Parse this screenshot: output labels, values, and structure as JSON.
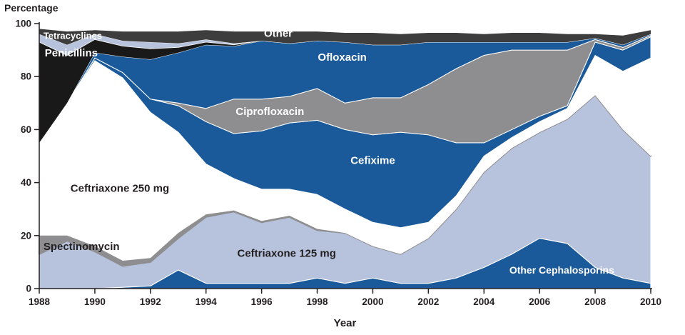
{
  "chart_data": {
    "type": "area",
    "stacked": true,
    "title": "",
    "ylabel": "Percentage",
    "xlabel": "Year",
    "ylim": [
      0,
      100
    ],
    "grid": false,
    "legend": "labels-inside-areas",
    "y_ticks": [
      0,
      20,
      40,
      60,
      80,
      100
    ],
    "x_ticks": [
      1988,
      1990,
      1992,
      1994,
      1996,
      1998,
      2000,
      2002,
      2004,
      2006,
      2008,
      2010
    ],
    "x": [
      1988,
      1989,
      1990,
      1991,
      1992,
      1993,
      1994,
      1995,
      1996,
      1997,
      1998,
      1999,
      2000,
      2001,
      2002,
      2003,
      2004,
      2005,
      2006,
      2007,
      2008,
      2009,
      2010
    ],
    "series": [
      {
        "id": "other-cephalosporins",
        "name": "Other Cephalosporins",
        "color": "#1a5a9a",
        "stroke": "#ffffff",
        "stroke_width": 1.2,
        "values": [
          0,
          0,
          0,
          0.5,
          1,
          7,
          2,
          2,
          2,
          2,
          4,
          2,
          4,
          2,
          2,
          4,
          8,
          13,
          19,
          17,
          8,
          4,
          2
        ]
      },
      {
        "id": "ceftriaxone-125",
        "name": "Ceftriaxone 125 mg",
        "color": "#b7c3dd",
        "stroke": "#ffffff",
        "stroke_width": 1,
        "values": [
          13,
          18,
          14,
          8,
          9,
          12,
          25,
          27,
          23,
          25,
          18,
          19,
          12,
          11,
          17,
          26,
          36,
          40,
          40,
          47,
          65,
          56,
          48
        ]
      },
      {
        "id": "spectinomycin",
        "name": "Spectinomycin",
        "color": "#8e8e90",
        "stroke": "#8e8e90",
        "stroke_width": 2,
        "values": [
          7,
          2,
          2,
          2,
          1.5,
          2,
          1,
          0.5,
          0.5,
          0.5,
          0.5,
          0,
          0,
          0,
          0,
          0,
          0,
          0,
          0,
          0,
          0,
          0,
          0
        ]
      },
      {
        "id": "ceftriaxone-250",
        "name": "Ceftriaxone 250 mg",
        "color": "#ffffff",
        "stroke": "none",
        "stroke_width": 0,
        "values": [
          35,
          50,
          70,
          69,
          55,
          38,
          19,
          12,
          12,
          10,
          13,
          9,
          9,
          10,
          6,
          5,
          6,
          4,
          4,
          4,
          15,
          22,
          37
        ]
      },
      {
        "id": "cefixime",
        "name": "Cefixime",
        "color": "#1a5a9a",
        "stroke": "#ffffff",
        "stroke_width": 1,
        "values": [
          0,
          0,
          1,
          2,
          5,
          10,
          16,
          17,
          22,
          25,
          28,
          30,
          33,
          36,
          33,
          20,
          5,
          3,
          2,
          1,
          5,
          8,
          8
        ]
      },
      {
        "id": "ciprofloxacin",
        "name": "Ciprofloxacin",
        "color": "#8e8e90",
        "stroke": "#ffffff",
        "stroke_width": 1,
        "values": [
          0,
          0,
          0,
          0,
          0,
          1,
          5,
          13,
          12,
          10,
          12,
          10,
          14,
          13,
          19,
          28,
          33,
          30,
          25,
          21,
          1,
          1,
          0.5
        ]
      },
      {
        "id": "ofloxacin",
        "name": "Ofloxacin",
        "color": "#1a5a9a",
        "stroke": "#ffffff",
        "stroke_width": 1,
        "values": [
          0,
          0,
          2,
          6,
          15,
          19,
          24,
          20,
          22,
          20,
          18,
          23,
          20,
          20,
          16,
          10,
          5,
          3,
          3,
          3,
          0.5,
          1,
          0.5
        ]
      },
      {
        "id": "penicillins",
        "name": "Penicillins",
        "color": "#191919",
        "stroke": "none",
        "stroke_width": 0,
        "values": [
          38,
          18,
          5,
          4,
          4,
          2,
          1,
          0.5,
          0,
          0,
          0,
          0,
          0,
          0,
          0,
          0,
          0,
          0,
          0,
          0,
          0,
          0,
          0
        ]
      },
      {
        "id": "tetracyclines",
        "name": "Tetracyclines",
        "color": "#b7c3dd",
        "stroke": "#ffffff",
        "stroke_width": 0.8,
        "values": [
          3,
          4,
          2,
          2,
          2.5,
          1.5,
          1,
          0.5,
          0,
          0,
          0,
          0,
          0,
          0,
          0,
          0,
          0,
          0,
          0,
          0,
          0,
          0,
          0
        ]
      },
      {
        "id": "other",
        "name": "Other",
        "color": "#3d3d3d",
        "stroke": "none",
        "stroke_width": 0,
        "values": [
          2,
          5,
          1.5,
          3.5,
          4,
          4.5,
          3.5,
          4.5,
          3.5,
          4.5,
          3.5,
          3.5,
          4.5,
          4,
          3.5,
          3.5,
          3,
          3.5,
          3.5,
          3,
          1.5,
          3.5,
          1.5
        ]
      }
    ],
    "annotations": [
      {
        "text": "Tetracyclines",
        "year": 1988.15,
        "pct": 95.5,
        "color": "#ffffff",
        "size": 13,
        "anchor": "start"
      },
      {
        "text": "Penicillins",
        "year": 1988.2,
        "pct": 89,
        "color": "#ffffff",
        "size": 15,
        "anchor": "start"
      },
      {
        "text": "Other",
        "year": 1996.6,
        "pct": 96.5,
        "color": "#ffffff",
        "size": 15,
        "anchor": "middle"
      },
      {
        "text": "Ofloxacin",
        "year": 1998.9,
        "pct": 87.5,
        "color": "#ffffff",
        "size": 15,
        "anchor": "middle"
      },
      {
        "text": "Ciprofloxacin",
        "year": 1996.3,
        "pct": 67,
        "color": "#ffffff",
        "size": 15,
        "anchor": "middle"
      },
      {
        "text": "Cefixime",
        "year": 2000,
        "pct": 48.5,
        "color": "#ffffff",
        "size": 15,
        "anchor": "middle"
      },
      {
        "text": "Ceftriaxone 250 mg",
        "year": 1990.9,
        "pct": 38,
        "color": "#231f20",
        "size": 15,
        "anchor": "middle"
      },
      {
        "text": "Spectinomycin",
        "year": 1988.15,
        "pct": 16,
        "color": "#231f20",
        "size": 15,
        "anchor": "start"
      },
      {
        "text": "Ceftriaxone 125 mg",
        "year": 1996.9,
        "pct": 13.5,
        "color": "#231f20",
        "size": 15,
        "anchor": "middle"
      },
      {
        "text": "Other Cephalosporins",
        "year": 2006.8,
        "pct": 7,
        "color": "#ffffff",
        "size": 14,
        "anchor": "middle"
      }
    ],
    "axis_color": "#231f20"
  }
}
